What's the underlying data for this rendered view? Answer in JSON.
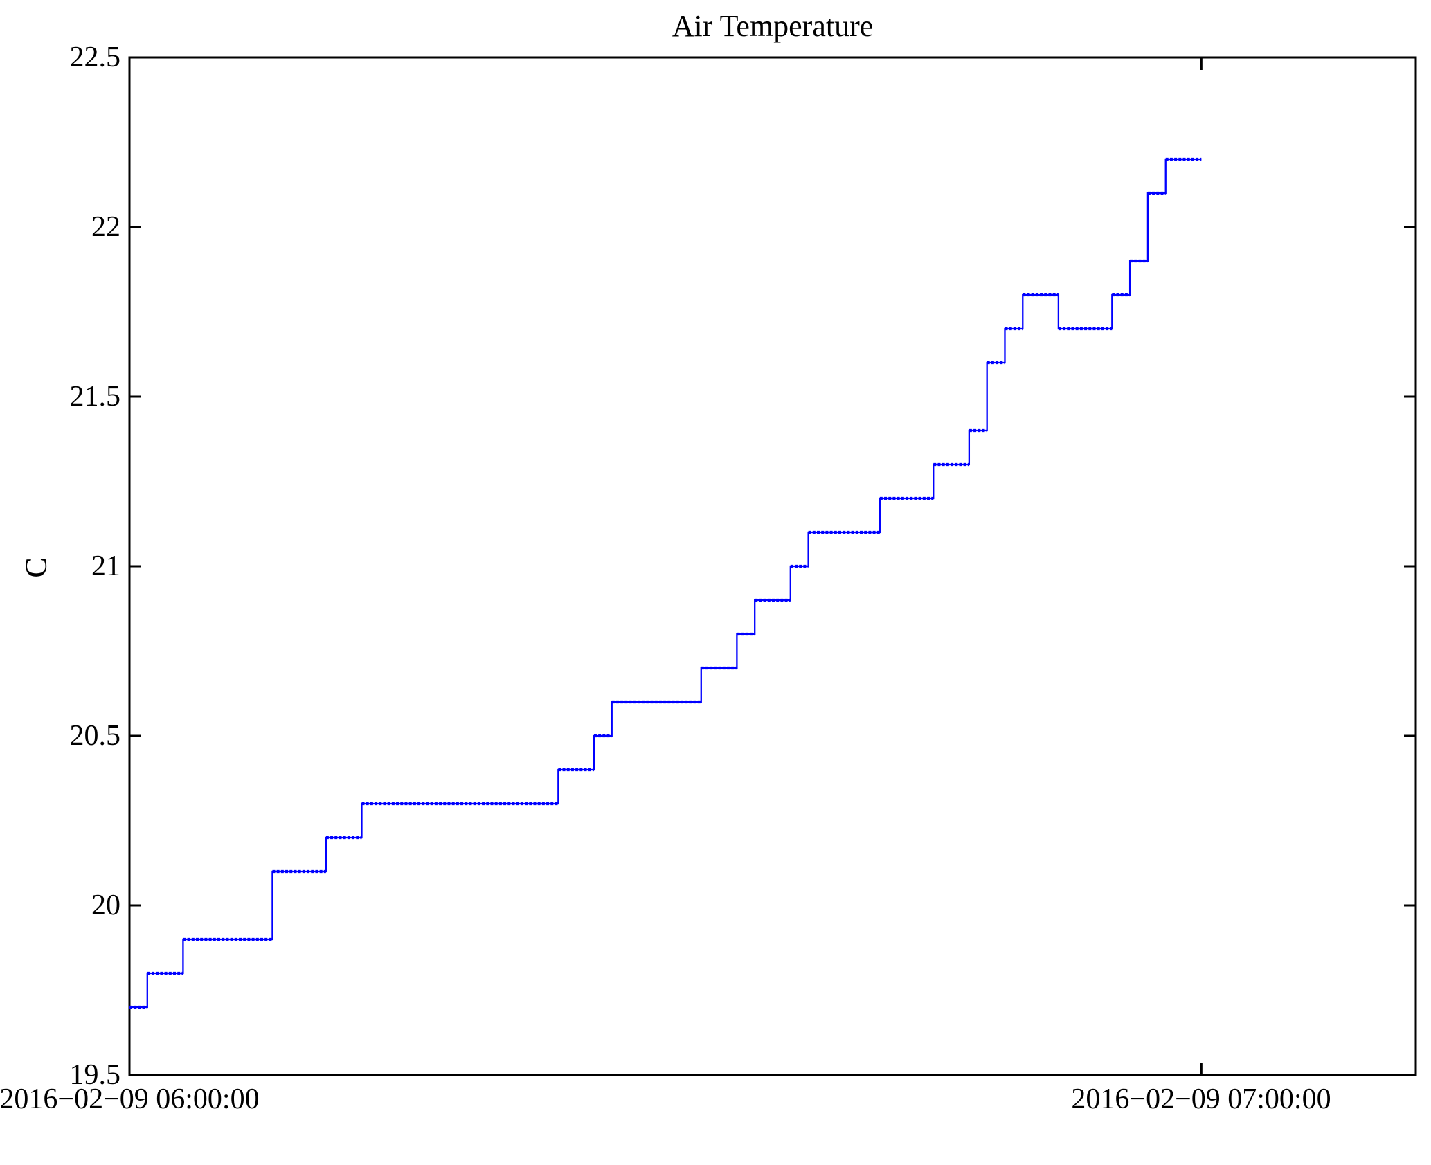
{
  "chart_data": {
    "type": "line",
    "subtype": "step-post",
    "title": "Air Temperature",
    "xlabel": "",
    "ylabel": "C",
    "grid": false,
    "legend_position": "none",
    "ylim": [
      19.5,
      22.5
    ],
    "xlim_minutes_after_start": [
      0,
      72
    ],
    "x_axis_time_range": [
      "2016-02-09 06:00:00",
      "2016-02-09 07:12:00"
    ],
    "yticks": [
      {
        "value": 19.5,
        "label": "19.5"
      },
      {
        "value": 20.0,
        "label": "20"
      },
      {
        "value": 20.5,
        "label": "20.5"
      },
      {
        "value": 21.0,
        "label": "21"
      },
      {
        "value": 21.5,
        "label": "21.5"
      },
      {
        "value": 22.0,
        "label": "22"
      },
      {
        "value": 22.5,
        "label": "22.5"
      }
    ],
    "xticks": [
      {
        "minute": 0,
        "label": "2016−02−09 06:00:00"
      },
      {
        "minute": 60,
        "label": "2016−02−09 07:00:00"
      }
    ],
    "series": [
      {
        "name": "air-temperature",
        "color": "#0000ff",
        "x_minutes": [
          0,
          1,
          2,
          3,
          4,
          5,
          6,
          7,
          8,
          9,
          10,
          11,
          12,
          13,
          14,
          15,
          16,
          17,
          18,
          19,
          20,
          21,
          22,
          23,
          24,
          25,
          26,
          27,
          28,
          29,
          30,
          31,
          32,
          33,
          34,
          35,
          36,
          37,
          38,
          39,
          40,
          41,
          42,
          43,
          44,
          45,
          46,
          47,
          48,
          49,
          50,
          51,
          52,
          53,
          54,
          55,
          56,
          57,
          58,
          59,
          60
        ],
        "values": [
          19.7,
          19.8,
          19.8,
          19.9,
          19.9,
          19.9,
          19.9,
          19.9,
          20.1,
          20.1,
          20.1,
          20.2,
          20.2,
          20.3,
          20.3,
          20.3,
          20.3,
          20.3,
          20.3,
          20.3,
          20.3,
          20.3,
          20.3,
          20.3,
          20.4,
          20.4,
          20.5,
          20.6,
          20.6,
          20.6,
          20.6,
          20.6,
          20.7,
          20.7,
          20.8,
          20.9,
          20.9,
          21.0,
          21.1,
          21.1,
          21.1,
          21.1,
          21.2,
          21.2,
          21.2,
          21.3,
          21.3,
          21.4,
          21.6,
          21.7,
          21.8,
          21.8,
          21.7,
          21.7,
          21.7,
          21.8,
          21.9,
          22.1,
          22.2,
          22.2,
          22.2
        ]
      }
    ]
  },
  "colors": {
    "line": "#0000ff",
    "axis": "#000000",
    "background": "#ffffff",
    "text": "#000000"
  }
}
